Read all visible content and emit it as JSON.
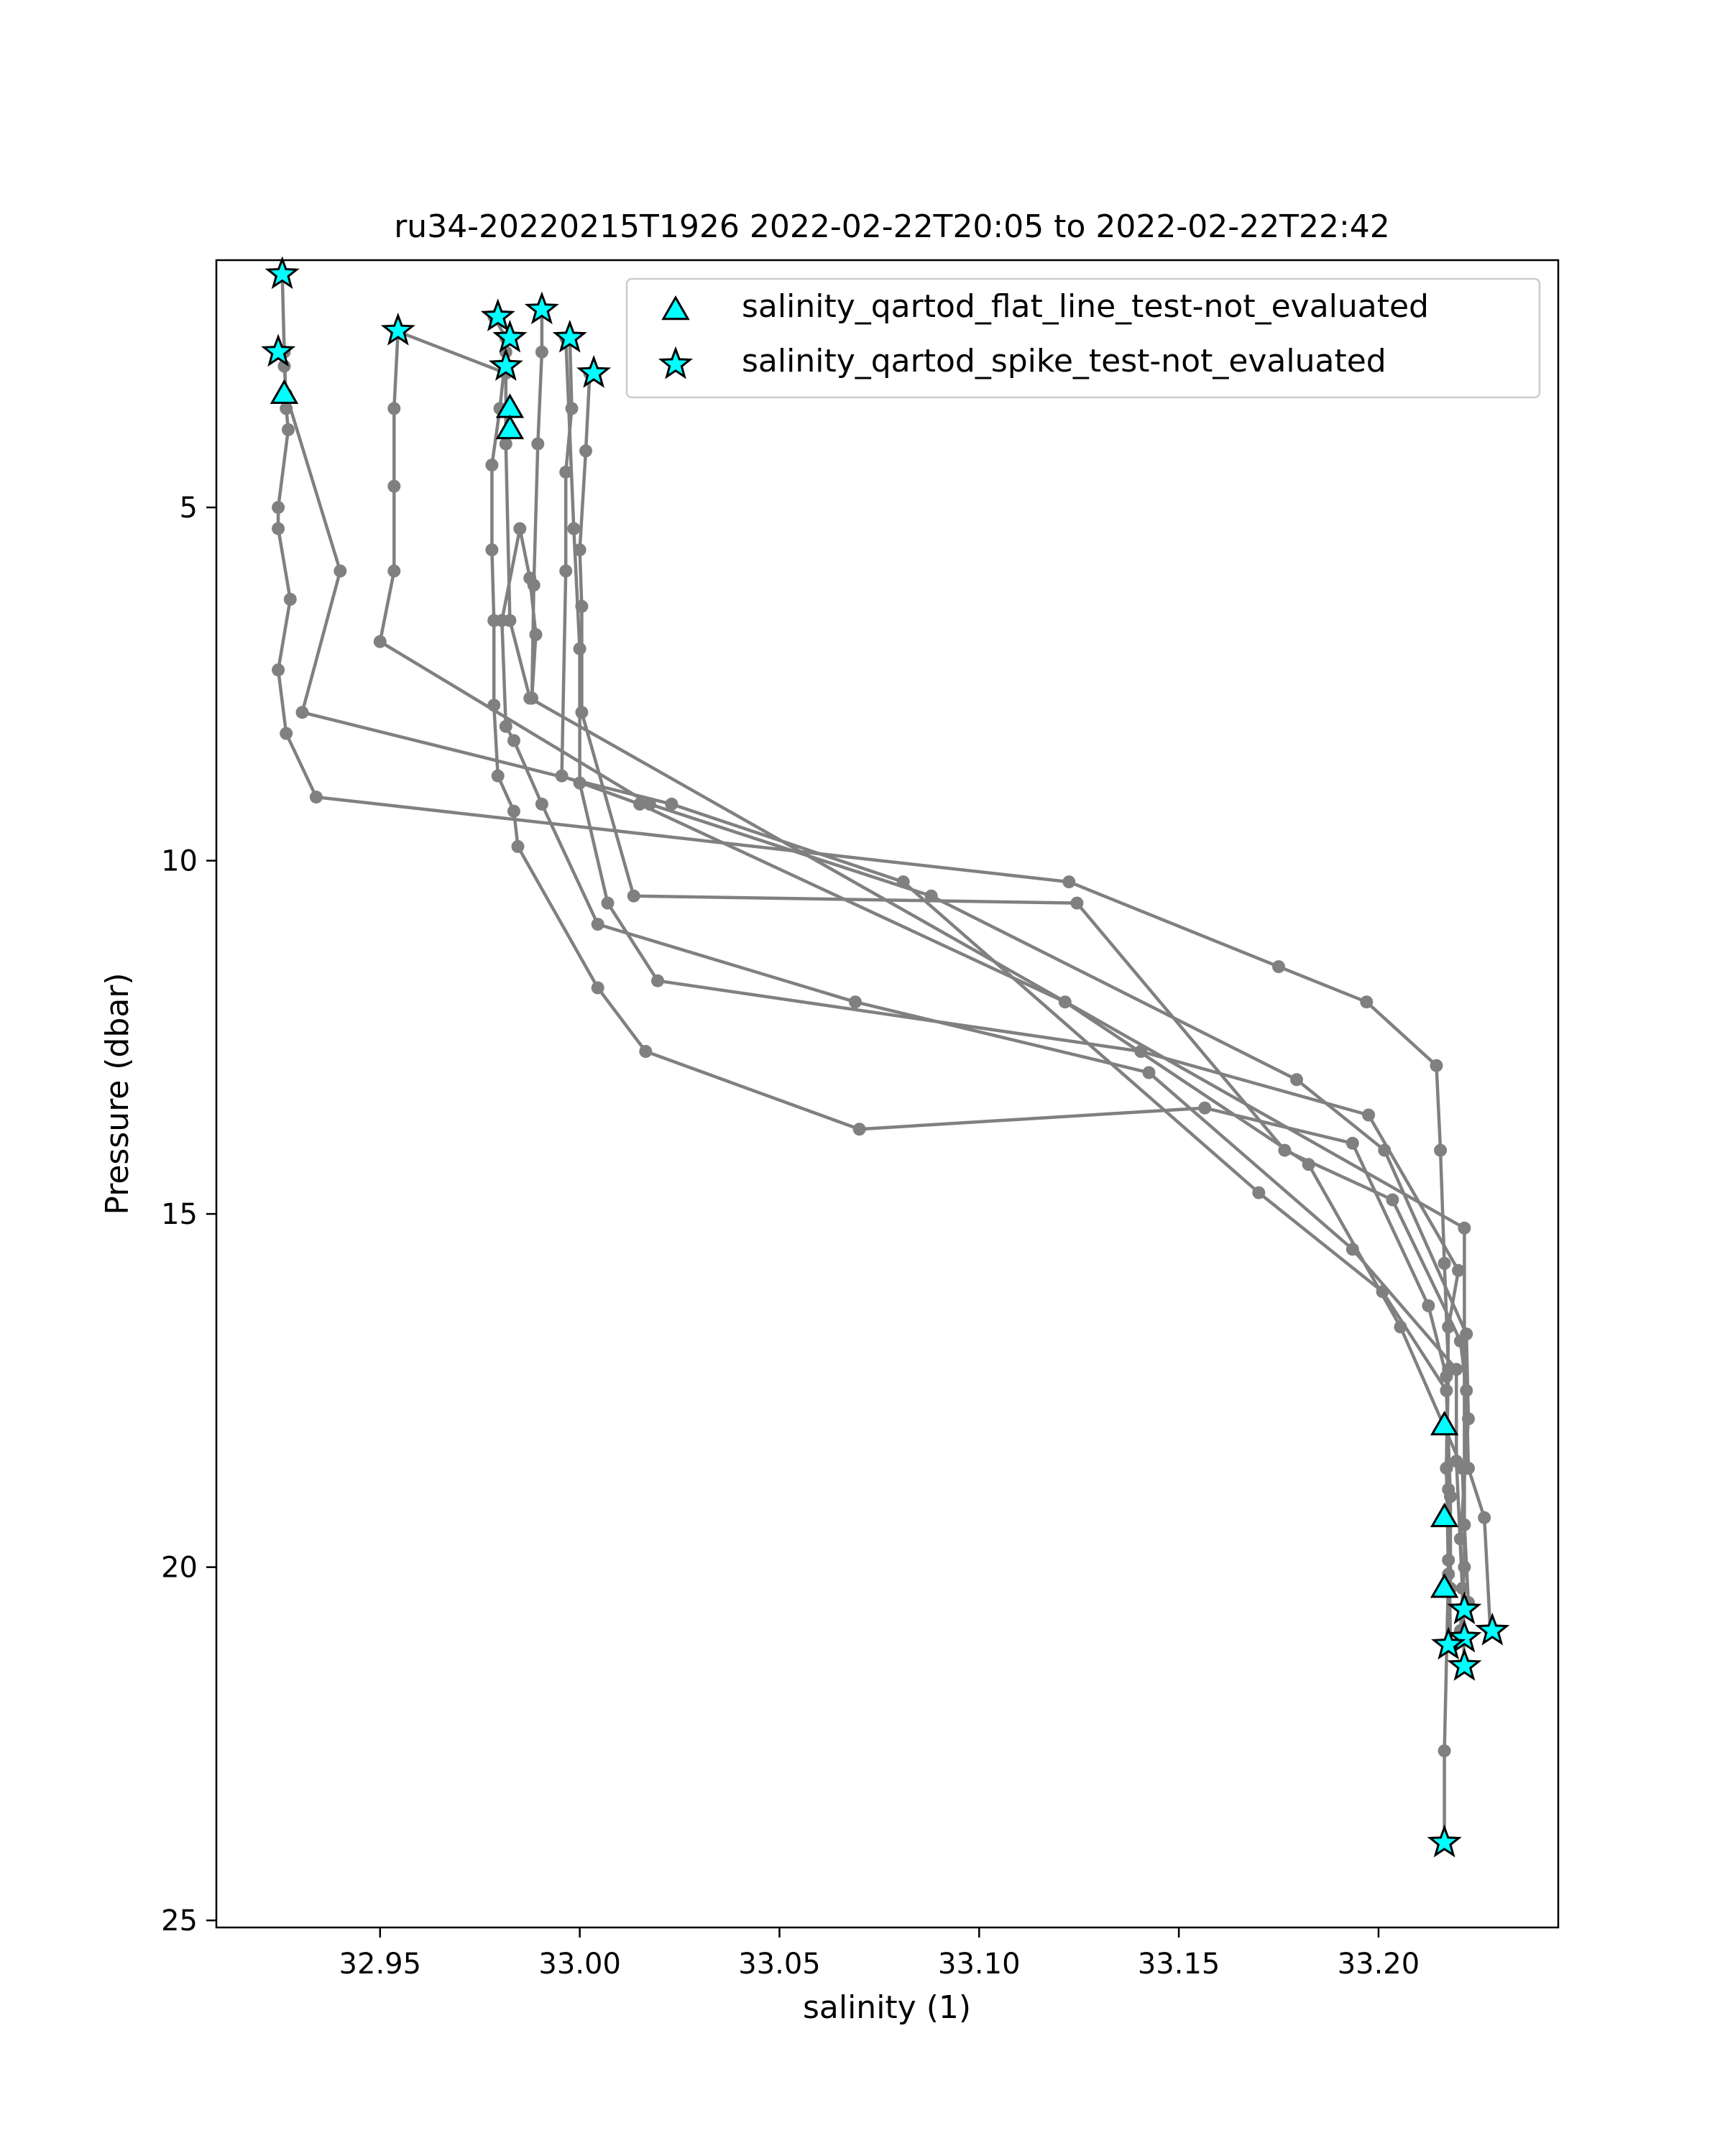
{
  "chart_data": {
    "type": "scatter",
    "title": "ru34-20220215T1926 2022-02-22T20:05 to 2022-02-22T22:42",
    "xlabel": "salinity (1)",
    "ylabel": "Pressure (dbar)",
    "xlim": [
      32.909,
      33.245
    ],
    "ylim": [
      25.1,
      1.5
    ],
    "y_inverted": true,
    "x_ticks": [
      32.95,
      33.0,
      33.05,
      33.1,
      33.15,
      33.2
    ],
    "x_tick_labels": [
      "32.95",
      "33.00",
      "33.05",
      "33.10",
      "33.15",
      "33.20"
    ],
    "y_ticks": [
      5,
      10,
      15,
      20,
      25
    ],
    "y_tick_labels": [
      "5",
      "10",
      "15",
      "20",
      "25"
    ],
    "grid": false,
    "legend_position": "top-right",
    "colors": {
      "profile_line": "#808080",
      "marker_fill": "#00ffff",
      "marker_edge": "#000000"
    },
    "profiles": [
      {
        "points": [
          [
            32.9255,
            1.7
          ],
          [
            32.926,
            2.8
          ],
          [
            32.9265,
            3.6
          ],
          [
            32.927,
            3.9
          ],
          [
            32.9245,
            5.0
          ],
          [
            32.9245,
            5.3
          ],
          [
            32.9275,
            6.3
          ],
          [
            32.9245,
            7.3
          ],
          [
            32.9265,
            8.2
          ],
          [
            32.934,
            9.1
          ],
          [
            33.1225,
            10.3
          ],
          [
            33.175,
            11.5
          ],
          [
            33.197,
            12.0
          ],
          [
            33.2145,
            12.9
          ],
          [
            33.2155,
            14.1
          ],
          [
            33.2165,
            15.7
          ],
          [
            33.2175,
            17.2
          ],
          [
            33.217,
            18.6
          ],
          [
            33.2175,
            20.1
          ],
          [
            33.2165,
            22.6
          ],
          [
            33.2165,
            23.9
          ]
        ]
      },
      {
        "points": [
          [
            32.9255,
            2.8
          ],
          [
            32.926,
            3.0
          ],
          [
            32.9265,
            3.4
          ],
          [
            32.94,
            5.9
          ],
          [
            32.9305,
            7.9
          ],
          [
            33.023,
            9.2
          ],
          [
            33.081,
            10.3
          ],
          [
            33.17,
            14.7
          ],
          [
            33.201,
            16.1
          ],
          [
            33.217,
            17.5
          ],
          [
            33.218,
            19.0
          ],
          [
            33.218,
            20.3
          ]
        ]
      },
      {
        "points": [
          [
            32.9545,
            2.5
          ],
          [
            32.9535,
            3.6
          ],
          [
            32.9535,
            4.7
          ],
          [
            32.9535,
            5.9
          ],
          [
            32.95,
            6.9
          ],
          [
            33.0175,
            9.2
          ],
          [
            33.088,
            10.5
          ],
          [
            33.1795,
            13.1
          ],
          [
            33.2015,
            14.1
          ],
          [
            33.222,
            16.7
          ],
          [
            33.2225,
            17.9
          ],
          [
            33.2205,
            19.6
          ],
          [
            33.2215,
            21.0
          ]
        ]
      },
      {
        "points": [
          [
            32.954,
            2.5
          ],
          [
            32.9815,
            3.1
          ],
          [
            32.9815,
            4.1
          ],
          [
            32.9825,
            6.6
          ],
          [
            32.9875,
            7.7
          ],
          [
            33.2215,
            15.2
          ],
          [
            33.2215,
            20.0
          ],
          [
            33.2205,
            20.9
          ]
        ]
      },
      {
        "points": [
          [
            32.9785,
            2.3
          ],
          [
            32.9815,
            2.6
          ],
          [
            32.9815,
            2.8
          ],
          [
            32.98,
            3.6
          ],
          [
            32.978,
            4.4
          ],
          [
            32.978,
            5.6
          ],
          [
            32.9785,
            6.6
          ],
          [
            32.9785,
            7.8
          ],
          [
            32.9795,
            8.8
          ],
          [
            32.9835,
            9.3
          ],
          [
            32.9845,
            9.8
          ],
          [
            33.0045,
            11.8
          ],
          [
            33.0165,
            12.7
          ],
          [
            33.07,
            13.8
          ],
          [
            33.1565,
            13.5
          ],
          [
            33.1935,
            14.0
          ],
          [
            33.2125,
            16.3
          ],
          [
            33.217,
            17.3
          ],
          [
            33.2175,
            18.9
          ],
          [
            33.218,
            21.1
          ]
        ]
      },
      {
        "points": [
          [
            32.9905,
            2.2
          ],
          [
            32.9905,
            2.8
          ],
          [
            32.9895,
            4.1
          ],
          [
            32.9885,
            6.1
          ],
          [
            32.988,
            7.7
          ],
          [
            32.989,
            6.8
          ],
          [
            32.9875,
            6.0
          ],
          [
            32.985,
            5.3
          ],
          [
            32.9805,
            6.6
          ],
          [
            32.9815,
            8.1
          ],
          [
            32.9835,
            8.3
          ],
          [
            32.9905,
            9.2
          ],
          [
            33.0045,
            10.9
          ],
          [
            33.069,
            12.0
          ],
          [
            33.1425,
            13.0
          ],
          [
            33.1935,
            15.5
          ],
          [
            33.2195,
            17.2
          ],
          [
            33.2195,
            18.5
          ],
          [
            33.221,
            20.3
          ],
          [
            33.2215,
            21.4
          ]
        ]
      },
      {
        "points": [
          [
            32.9975,
            2.6
          ],
          [
            32.998,
            3.6
          ],
          [
            32.9965,
            4.5
          ],
          [
            32.9965,
            5.9
          ],
          [
            32.9955,
            8.8
          ],
          [
            33.015,
            9.2
          ],
          [
            33.1215,
            12.0
          ],
          [
            33.1825,
            14.3
          ],
          [
            33.2055,
            16.6
          ],
          [
            33.221,
            18.6
          ],
          [
            33.2215,
            19.4
          ],
          [
            33.2225,
            20.5
          ]
        ]
      },
      {
        "points": [
          [
            32.9965,
            2.6
          ],
          [
            32.9985,
            5.3
          ],
          [
            33.0,
            7.0
          ],
          [
            33.0,
            8.9
          ],
          [
            33.007,
            10.6
          ],
          [
            33.0195,
            11.7
          ],
          [
            33.1405,
            12.7
          ],
          [
            33.1975,
            13.6
          ],
          [
            33.22,
            15.8
          ],
          [
            33.2175,
            16.6
          ],
          [
            33.217,
            18.6
          ],
          [
            33.2175,
            19.9
          ]
        ]
      },
      {
        "points": [
          [
            33.0025,
            3.1
          ],
          [
            33.0015,
            4.2
          ],
          [
            33.0,
            5.6
          ],
          [
            33.0005,
            6.4
          ],
          [
            33.0005,
            7.9
          ],
          [
            33.0135,
            10.5
          ],
          [
            33.1245,
            10.6
          ],
          [
            33.1765,
            14.1
          ],
          [
            33.2035,
            14.8
          ],
          [
            33.2205,
            16.8
          ],
          [
            33.222,
            17.5
          ],
          [
            33.2225,
            18.6
          ],
          [
            33.2265,
            19.3
          ],
          [
            33.228,
            20.9
          ]
        ]
      }
    ],
    "series": [
      {
        "name": "salinity_qartod_flat_line_test-not_evaluated",
        "marker": "triangle",
        "points": [
          [
            32.926,
            3.4
          ],
          [
            32.9825,
            3.6
          ],
          [
            32.9825,
            3.9
          ],
          [
            33.2165,
            18.0
          ],
          [
            33.2165,
            19.3
          ],
          [
            33.2165,
            20.3
          ]
        ]
      },
      {
        "name": "salinity_qartod_spike_test-not_evaluated",
        "marker": "star",
        "points": [
          [
            32.9255,
            1.7
          ],
          [
            32.9245,
            2.8
          ],
          [
            32.9545,
            2.5
          ],
          [
            32.9795,
            2.3
          ],
          [
            32.9905,
            2.2
          ],
          [
            32.9825,
            2.6
          ],
          [
            32.9815,
            3.0
          ],
          [
            32.9975,
            2.6
          ],
          [
            33.0035,
            3.1
          ],
          [
            33.2215,
            20.6
          ],
          [
            33.2285,
            20.9
          ],
          [
            33.2215,
            21.0
          ],
          [
            33.2175,
            21.1
          ],
          [
            33.2215,
            21.4
          ],
          [
            33.2165,
            23.9
          ]
        ]
      }
    ]
  }
}
